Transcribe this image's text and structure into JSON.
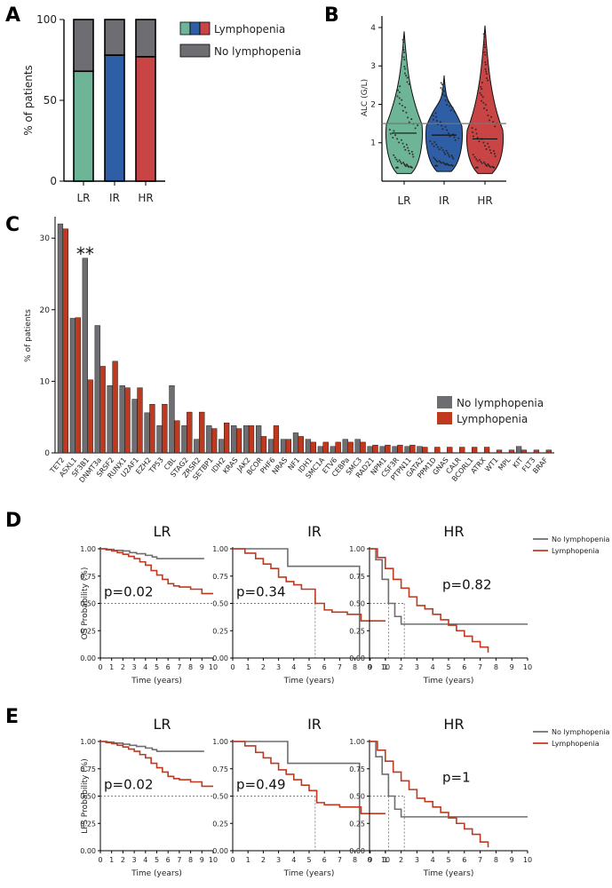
{
  "panel_labels": [
    "A",
    "B",
    "C",
    "D",
    "E"
  ],
  "colors": {
    "LR": "#6db596",
    "IR": "#2e5ea5",
    "HR": "#c94545",
    "no_lymph": "#6e6e72",
    "lymph_c": "#c0391f",
    "km_no": "#6e6e72",
    "km_ly": "#c0391f"
  },
  "chart_data": [
    {
      "id": "A",
      "type": "bar",
      "stacked": true,
      "categories": [
        "LR",
        "IR",
        "HR"
      ],
      "series": [
        {
          "name": "Lymphopenia",
          "values": [
            68,
            78,
            77
          ]
        },
        {
          "name": "No lymphopenia",
          "values": [
            32,
            22,
            23
          ]
        }
      ],
      "ylabel": "% of patients",
      "ylim": [
        0,
        100
      ],
      "yticks": [
        0,
        50,
        100
      ],
      "legend": [
        "Lymphopenia",
        "No lymphopenia"
      ]
    },
    {
      "id": "B",
      "type": "violin",
      "categories": [
        "LR",
        "IR",
        "HR"
      ],
      "ylabel": "ALC (G/L)",
      "ylim": [
        0,
        4.3
      ],
      "yticks": [
        1,
        2,
        3,
        4
      ],
      "reference_line": 1.5,
      "median": [
        1.25,
        1.2,
        1.1
      ],
      "max": [
        3.9,
        2.75,
        4.05
      ],
      "min": [
        0.2,
        0.25,
        0.2
      ]
    },
    {
      "id": "C",
      "type": "bar",
      "categories": [
        "TET2",
        "ASXL1",
        "SF3B1",
        "DNMT3a",
        "SRSF2",
        "RUNX1",
        "U2AF1",
        "EZH2",
        "TP53",
        "CBL",
        "STAG2",
        "ZRSR2",
        "SETBP1",
        "IDH2",
        "KRAS",
        "JAK2",
        "BCOR",
        "PHF6",
        "NRAS",
        "NF1",
        "IDH1",
        "SMC1A",
        "ETV6",
        "CEBPa",
        "SMC3",
        "RAD21",
        "NPM1",
        "CSF3R",
        "PTPN11",
        "GATA2",
        "PPM1D",
        "GNAS",
        "CALR",
        "BCORL1",
        "ATRX",
        "WT1",
        "MPL",
        "KIT",
        "FLT3",
        "BRAF"
      ],
      "series": [
        {
          "name": "No lymphopenia",
          "values": [
            32,
            18.8,
            27.2,
            17.8,
            9.4,
            9.4,
            7.5,
            5.6,
            3.8,
            9.4,
            3.8,
            1.9,
            3.8,
            1.9,
            3.8,
            3.8,
            3.8,
            1.9,
            1.9,
            2.8,
            1.9,
            0.9,
            0.9,
            1.9,
            1.9,
            0.9,
            0.9,
            0.9,
            0.9,
            0.9,
            0,
            0,
            0,
            0,
            0,
            0,
            0,
            0.9,
            0,
            0
          ]
        },
        {
          "name": "Lymphopenia",
          "values": [
            31.3,
            18.9,
            10.2,
            12.1,
            12.8,
            9.1,
            9.1,
            6.8,
            6.8,
            4.5,
            5.7,
            5.7,
            3.4,
            4.2,
            3.4,
            3.8,
            2.3,
            3.8,
            1.9,
            2.3,
            1.5,
            1.5,
            1.5,
            1.5,
            1.5,
            1.1,
            1.1,
            1.1,
            1.1,
            0.8,
            0.8,
            0.8,
            0.8,
            0.8,
            0.8,
            0.4,
            0.4,
            0.4,
            0.4,
            0.4
          ]
        }
      ],
      "ylabel": "% of patients",
      "ylim": [
        0,
        33
      ],
      "yticks": [
        0,
        10,
        20,
        30
      ],
      "annotation": "**",
      "legend": [
        "No lymphopenia",
        "Lymphopenia"
      ]
    },
    {
      "id": "D",
      "type": "line",
      "subtype": "kaplan-meier",
      "ylabel": "OS Probability (%)",
      "xlabel": "Time (years)",
      "xlim": [
        0,
        10
      ],
      "ylim": [
        0,
        1
      ],
      "xticks": [
        "0",
        "1",
        "2",
        "3",
        "4",
        "5",
        "6",
        "7",
        "8",
        "9",
        "10"
      ],
      "yticks": [
        "0.00",
        "0.25",
        "0.50",
        "0.75",
        "1.00"
      ],
      "legend": [
        "No lymphopenia",
        "Lymphopenia"
      ],
      "subplots": [
        {
          "title": "LR",
          "pvalue": "p=0.02",
          "no": [
            [
              0,
              1
            ],
            [
              0.6,
              0.995
            ],
            [
              1.2,
              0.985
            ],
            [
              2,
              0.98
            ],
            [
              2.6,
              0.965
            ],
            [
              3.2,
              0.955
            ],
            [
              4,
              0.94
            ],
            [
              4.6,
              0.925
            ],
            [
              5,
              0.91
            ],
            [
              9.2,
              0.91
            ]
          ],
          "ly": [
            [
              0,
              1
            ],
            [
              0.5,
              0.99
            ],
            [
              1,
              0.98
            ],
            [
              1.5,
              0.965
            ],
            [
              2,
              0.95
            ],
            [
              2.5,
              0.93
            ],
            [
              3,
              0.91
            ],
            [
              3.5,
              0.88
            ],
            [
              4,
              0.85
            ],
            [
              4.5,
              0.8
            ],
            [
              5,
              0.76
            ],
            [
              5.5,
              0.72
            ],
            [
              6,
              0.68
            ],
            [
              6.5,
              0.66
            ],
            [
              7,
              0.65
            ],
            [
              8,
              0.63
            ],
            [
              9,
              0.59
            ],
            [
              10,
              0.59
            ]
          ]
        },
        {
          "title": "IR",
          "pvalue": "p=0.34",
          "median_x": [
            5.4
          ],
          "no": [
            [
              0,
              1
            ],
            [
              3.6,
              1
            ],
            [
              3.6,
              0.84
            ],
            [
              8.3,
              0.84
            ],
            [
              8.3,
              0.02
            ]
          ],
          "ly": [
            [
              0,
              1
            ],
            [
              0.8,
              0.96
            ],
            [
              1.5,
              0.91
            ],
            [
              2,
              0.86
            ],
            [
              2.5,
              0.82
            ],
            [
              3,
              0.74
            ],
            [
              3.5,
              0.7
            ],
            [
              4,
              0.67
            ],
            [
              4.5,
              0.63
            ],
            [
              5.4,
              0.5
            ],
            [
              6,
              0.44
            ],
            [
              6.5,
              0.42
            ],
            [
              7.5,
              0.4
            ],
            [
              8.4,
              0.34
            ],
            [
              10,
              0.34
            ]
          ]
        },
        {
          "title": "HR",
          "pvalue": "p=0.82",
          "median_x": [
            1.2,
            2.2
          ],
          "no": [
            [
              0,
              1
            ],
            [
              0.4,
              0.9
            ],
            [
              0.8,
              0.72
            ],
            [
              1.2,
              0.5
            ],
            [
              1.6,
              0.38
            ],
            [
              2,
              0.31
            ],
            [
              10,
              0.31
            ]
          ],
          "ly": [
            [
              0,
              1
            ],
            [
              0.5,
              0.92
            ],
            [
              1,
              0.82
            ],
            [
              1.5,
              0.72
            ],
            [
              2,
              0.64
            ],
            [
              2.5,
              0.56
            ],
            [
              3,
              0.48
            ],
            [
              3.5,
              0.45
            ],
            [
              4,
              0.4
            ],
            [
              4.5,
              0.35
            ],
            [
              5,
              0.3
            ],
            [
              5.5,
              0.25
            ],
            [
              6,
              0.2
            ],
            [
              6.5,
              0.15
            ],
            [
              7,
              0.1
            ],
            [
              7.5,
              0.05
            ]
          ]
        }
      ]
    },
    {
      "id": "E",
      "type": "line",
      "subtype": "kaplan-meier",
      "ylabel": "LFS Probability (%)",
      "xlabel": "Time (years)",
      "xlim": [
        0,
        10
      ],
      "ylim": [
        0,
        1
      ],
      "xticks": [
        "0",
        "1",
        "2",
        "3",
        "4",
        "5",
        "6",
        "7",
        "8",
        "9",
        "10"
      ],
      "yticks": [
        "0.00",
        "0.25",
        "0.50",
        "0.75",
        "1.00"
      ],
      "legend": [
        "No lymphopenia",
        "Lymphopenia"
      ],
      "subplots": [
        {
          "title": "LR",
          "pvalue": "p=0.02",
          "no": [
            [
              0,
              1
            ],
            [
              0.6,
              0.995
            ],
            [
              1.2,
              0.985
            ],
            [
              2,
              0.975
            ],
            [
              2.6,
              0.965
            ],
            [
              3.2,
              0.955
            ],
            [
              4,
              0.94
            ],
            [
              4.6,
              0.925
            ],
            [
              5,
              0.91
            ],
            [
              9.2,
              0.91
            ]
          ],
          "ly": [
            [
              0,
              1
            ],
            [
              0.5,
              0.99
            ],
            [
              1,
              0.98
            ],
            [
              1.5,
              0.965
            ],
            [
              2,
              0.95
            ],
            [
              2.5,
              0.93
            ],
            [
              3,
              0.91
            ],
            [
              3.5,
              0.88
            ],
            [
              4,
              0.85
            ],
            [
              4.5,
              0.8
            ],
            [
              5,
              0.76
            ],
            [
              5.5,
              0.72
            ],
            [
              6,
              0.68
            ],
            [
              6.5,
              0.66
            ],
            [
              7,
              0.65
            ],
            [
              8,
              0.63
            ],
            [
              9,
              0.59
            ],
            [
              10,
              0.59
            ]
          ]
        },
        {
          "title": "IR",
          "pvalue": "p=0.49",
          "median_x": [
            5.4
          ],
          "no": [
            [
              0,
              1
            ],
            [
              3.6,
              1
            ],
            [
              3.6,
              0.8
            ],
            [
              8.3,
              0.8
            ],
            [
              8.3,
              0.02
            ]
          ],
          "ly": [
            [
              0,
              1
            ],
            [
              0.8,
              0.96
            ],
            [
              1.5,
              0.9
            ],
            [
              2,
              0.85
            ],
            [
              2.5,
              0.8
            ],
            [
              3,
              0.74
            ],
            [
              3.5,
              0.7
            ],
            [
              4,
              0.65
            ],
            [
              4.5,
              0.6
            ],
            [
              5,
              0.55
            ],
            [
              5.5,
              0.44
            ],
            [
              6,
              0.42
            ],
            [
              7,
              0.4
            ],
            [
              8.4,
              0.34
            ],
            [
              10,
              0.34
            ]
          ]
        },
        {
          "title": "HR",
          "pvalue": "p=1",
          "median_x": [
            1.2,
            2.2
          ],
          "no": [
            [
              0,
              1
            ],
            [
              0.4,
              0.86
            ],
            [
              0.8,
              0.7
            ],
            [
              1.2,
              0.5
            ],
            [
              1.6,
              0.38
            ],
            [
              2,
              0.31
            ],
            [
              10,
              0.31
            ]
          ],
          "ly": [
            [
              0,
              1
            ],
            [
              0.5,
              0.92
            ],
            [
              1,
              0.82
            ],
            [
              1.5,
              0.72
            ],
            [
              2,
              0.64
            ],
            [
              2.5,
              0.56
            ],
            [
              3,
              0.48
            ],
            [
              3.5,
              0.45
            ],
            [
              4,
              0.4
            ],
            [
              4.5,
              0.35
            ],
            [
              5,
              0.3
            ],
            [
              5.5,
              0.25
            ],
            [
              6,
              0.2
            ],
            [
              6.5,
              0.15
            ],
            [
              7,
              0.08
            ],
            [
              7.5,
              0.03
            ]
          ]
        }
      ]
    }
  ]
}
